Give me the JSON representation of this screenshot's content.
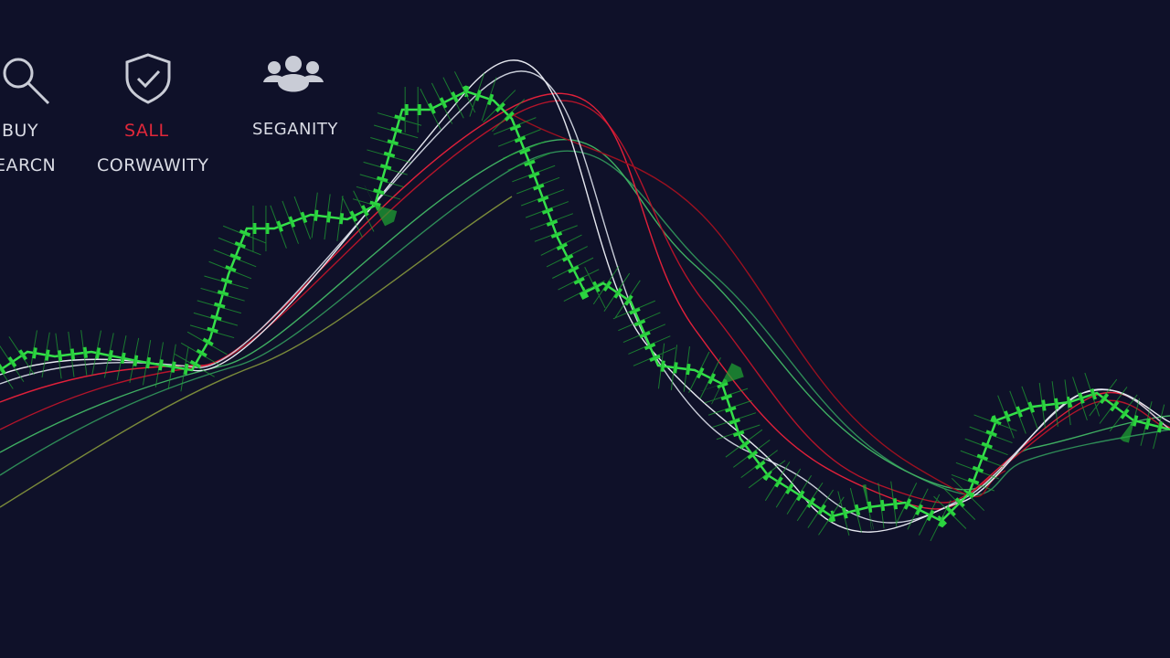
{
  "menu": [
    {
      "label": "BUY"
    },
    {
      "label": "SALL"
    },
    {
      "label": "SEGANITY"
    },
    {
      "label": "EARCN"
    },
    {
      "label": "CORWAWITY"
    }
  ]
}
